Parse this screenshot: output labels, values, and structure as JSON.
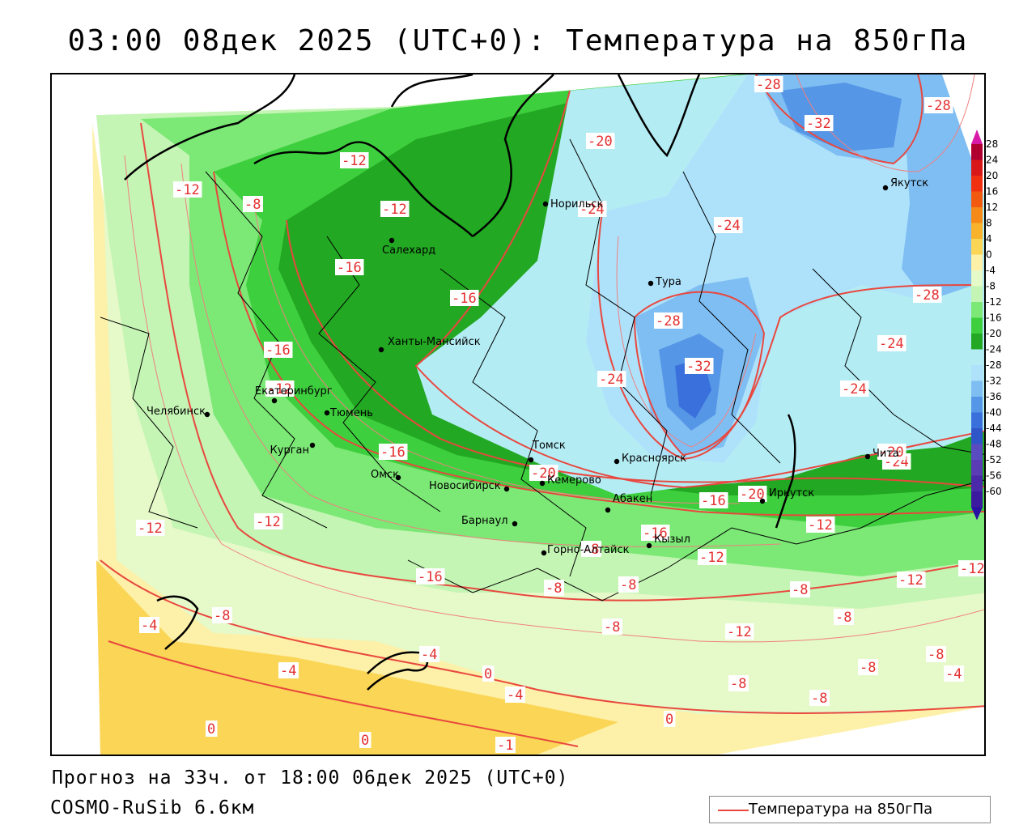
{
  "header": {
    "title": "03:00 08дек 2025 (UTC+0): Температура на 850гПа"
  },
  "footer": {
    "forecast": "Прогноз на 33ч. от 18:00 06дек 2025 (UTC+0)",
    "model": "COSMO-RuSib 6.6км"
  },
  "legend": {
    "label": "Температура на 850гПа",
    "line_color": "#e8483f"
  },
  "colorbar": {
    "labels": [
      "28",
      "24",
      "20",
      "16",
      "12",
      "8",
      "4",
      "0",
      "-4",
      "-8",
      "-12",
      "-16",
      "-20",
      "-24",
      "-28",
      "-32",
      "-36",
      "-40",
      "-44",
      "-48",
      "-52",
      "-56",
      "-60"
    ],
    "colors": [
      "#b00030",
      "#d81818",
      "#f03010",
      "#f25a10",
      "#f58a18",
      "#f8b22c",
      "#fbd555",
      "#fdf0a8",
      "#e6f9c8",
      "#c4f5b4",
      "#7ce876",
      "#3ecf3e",
      "#22a822",
      "#b4ecf4",
      "#aee2fb",
      "#7fbef2",
      "#5696e6",
      "#3a70dc",
      "#2f56c8",
      "#5a4cc0",
      "#5a3cb4",
      "#4a2aa8",
      "#3c1aa0"
    ],
    "top_color": "#d81aa8",
    "bottom_color": "#2a10a0"
  },
  "cities": [
    {
      "name": "Норильск"
    },
    {
      "name": "Якутск"
    },
    {
      "name": "Салехард"
    },
    {
      "name": "Тура"
    },
    {
      "name": "Ханты-Мансийск"
    },
    {
      "name": "Екатеринбург"
    },
    {
      "name": "Тюмень"
    },
    {
      "name": "Челябинск"
    },
    {
      "name": "Курган"
    },
    {
      "name": "Омск"
    },
    {
      "name": "Новосибирск"
    },
    {
      "name": "Томск"
    },
    {
      "name": "Кемерово"
    },
    {
      "name": "Красноярск"
    },
    {
      "name": "Барнаул"
    },
    {
      "name": "Абакен"
    },
    {
      "name": "Кызыл"
    },
    {
      "name": "Горно-Алтайск"
    },
    {
      "name": "Иркутск"
    },
    {
      "name": "Чита"
    }
  ],
  "isotherm_labels": [
    "-28",
    "-32",
    "-28",
    "-20",
    "-12",
    "-12",
    "-8",
    "-12",
    "-24",
    "-24",
    "-16",
    "-16",
    "-28",
    "-32",
    "-16",
    "-24",
    "-24",
    "-24",
    "-12",
    "-28",
    "-24",
    "-20",
    "-16",
    "-20",
    "-20",
    "-16",
    "-16",
    "-12",
    "-12",
    "-16",
    "-8",
    "-12",
    "-12",
    "-12",
    "-8",
    "-8",
    "-8",
    "-8",
    "-8",
    "-12",
    "-12",
    "-4",
    "-4",
    "-4",
    "-8",
    "-8",
    "-8",
    "-8",
    "-8",
    "-4",
    "-4",
    "0",
    "0",
    "0",
    "0",
    "-1"
  ]
}
